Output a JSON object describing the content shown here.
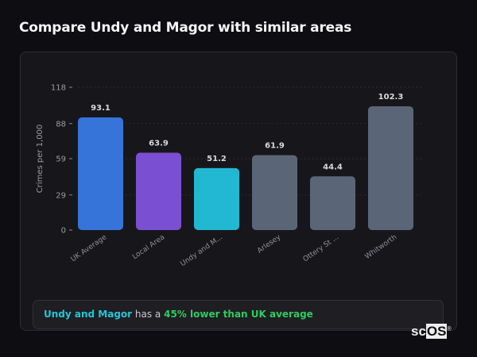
{
  "title": "Compare Undy and Magor with similar areas",
  "chart_data": {
    "type": "bar",
    "title": "",
    "xlabel": "",
    "ylabel": "Crimes per 1,000",
    "ylim": [
      0,
      118
    ],
    "yticks": [
      0,
      29,
      59,
      88,
      118
    ],
    "grid": true,
    "categories": [
      "UK Average",
      "Local Area",
      "Undy and M...",
      "Arlesey",
      "Ottery St ...",
      "Whitworth"
    ],
    "values": [
      93.1,
      63.9,
      51.2,
      61.9,
      44.4,
      102.3
    ],
    "value_labels": [
      "93.1",
      "63.9",
      "51.2",
      "61.9",
      "44.4",
      "102.3"
    ],
    "colors": [
      "#3674d9",
      "#7b4fd1",
      "#22b8d1",
      "#5a6678",
      "#5a6678",
      "#5a6678"
    ]
  },
  "summary": {
    "place": "Undy and Magor",
    "middle": " has a ",
    "stat": "45% lower than UK average"
  },
  "logo": {
    "text_a": "sc",
    "text_b": "OS",
    "mark": "®"
  }
}
